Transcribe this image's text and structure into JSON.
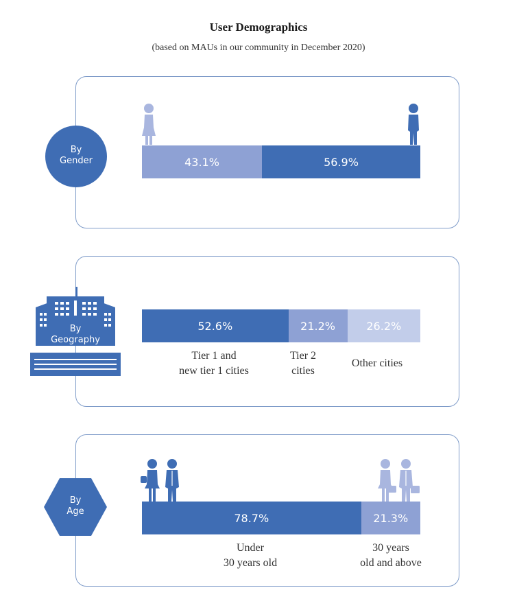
{
  "title": "User Demographics",
  "subtitle": "(based on MAUs in our community in December 2020)",
  "colors": {
    "dark": "#3f6db4",
    "mid": "#8ea1d4",
    "light": "#c2cdea",
    "border": "#7f9cc9",
    "icon_faint": "#a9b6df"
  },
  "sections": [
    {
      "badge_label": "By\nGender",
      "badge_icon": "circle-badge"
    },
    {
      "badge_label": "By\nGeography",
      "badge_icon": "building-icon"
    },
    {
      "badge_label": "By\nAge",
      "badge_icon": "hexagon-badge"
    }
  ],
  "chart_data": [
    {
      "type": "bar",
      "stacked": true,
      "orientation": "horizontal",
      "name_shown": "By Gender",
      "categories": [
        "Female",
        "Male"
      ],
      "values": [
        43.1,
        56.9
      ],
      "labels": [
        "43.1%",
        "56.9%"
      ],
      "icons": [
        "female-icon",
        "male-icon"
      ]
    },
    {
      "type": "bar",
      "stacked": true,
      "orientation": "horizontal",
      "name_shown": "By Geography",
      "categories": [
        "Tier 1 and\nnew tier 1 cities",
        "Tier 2\ncities",
        "Other cities"
      ],
      "values": [
        52.6,
        21.2,
        26.2
      ],
      "labels": [
        "52.6%",
        "21.2%",
        "26.2%"
      ]
    },
    {
      "type": "bar",
      "stacked": true,
      "orientation": "horizontal",
      "name_shown": "By Age",
      "categories": [
        "Under\n30 years old",
        "30 years\nold and above"
      ],
      "values": [
        78.7,
        21.3
      ],
      "labels": [
        "78.7%",
        "21.3%"
      ],
      "icons": [
        "young-people-icon",
        "older-people-icon"
      ]
    }
  ]
}
